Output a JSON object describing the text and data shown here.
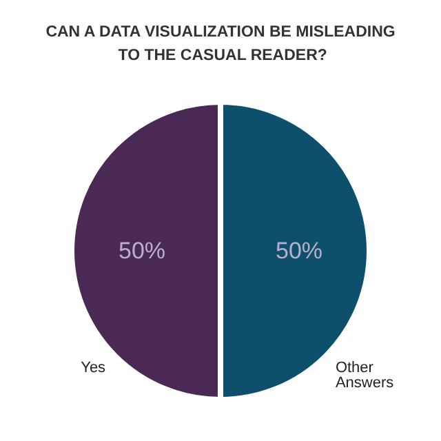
{
  "chart_data": {
    "type": "pie",
    "title": "CAN A DATA VISUALIZATION BE MISLEADING TO THE CASUAL READER?",
    "categories": [
      "Yes",
      "Other Answers"
    ],
    "values": [
      50,
      50
    ],
    "colors": [
      "#4a2a55",
      "#0e4f6b"
    ],
    "value_labels": [
      "50%",
      "50%"
    ]
  }
}
